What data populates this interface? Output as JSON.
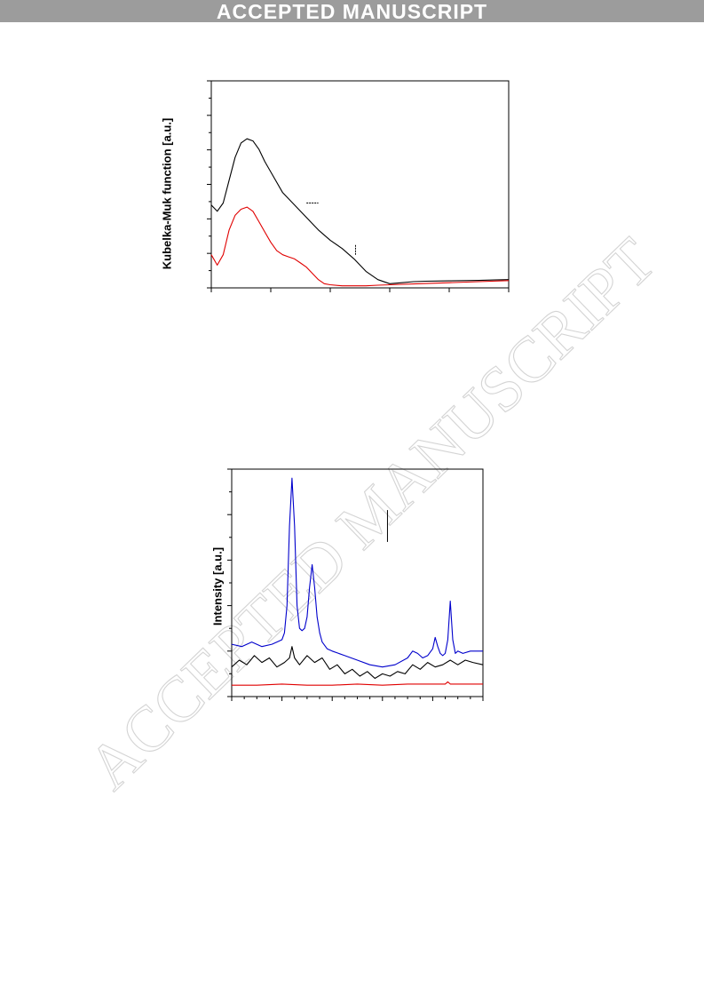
{
  "header": {
    "banner": "ACCEPTED MANUSCRIPT"
  },
  "watermark": {
    "text": "ACCEPTED MANUSCRIPT"
  },
  "chart_data": [
    {
      "type": "line",
      "ylabel": "Kubelka-Muk function [a.u.]",
      "xlim": [
        0,
        100
      ],
      "ylim": [
        0,
        100
      ],
      "grid": false,
      "series": [
        {
          "color": "#000000",
          "x": [
            0,
            2,
            4,
            6,
            8,
            10,
            12,
            14,
            16,
            18,
            20,
            24,
            28,
            32,
            36,
            40,
            44,
            48,
            52,
            56,
            60,
            64,
            68,
            72,
            76,
            80,
            85,
            90,
            95,
            100
          ],
          "y": [
            40,
            37,
            41,
            52,
            63,
            70,
            72,
            71,
            67,
            61,
            56,
            46,
            40,
            34,
            28,
            23,
            19,
            14,
            8,
            4,
            2,
            2.5,
            3,
            3.2,
            3.3,
            3.4,
            3.5,
            3.6,
            3.8,
            4
          ]
        },
        {
          "color": "#e00000",
          "x": [
            0,
            2,
            4,
            6,
            8,
            10,
            12,
            14,
            16,
            18,
            20,
            22,
            24,
            26,
            28,
            30,
            32,
            34,
            36,
            38,
            40,
            44,
            48,
            52,
            56,
            60,
            70,
            80,
            90,
            100
          ],
          "y": [
            16,
            11,
            16,
            28,
            35,
            38,
            39,
            37,
            32,
            27,
            22,
            18,
            16,
            15,
            14,
            12,
            10,
            7,
            4,
            2,
            1.5,
            1,
            1,
            1,
            1.3,
            1.5,
            2,
            2.5,
            3,
            3.5
          ]
        }
      ],
      "annotations": [
        {
          "kind": "dash-h",
          "x": [
            32,
            36
          ],
          "y": 41
        },
        {
          "kind": "dash-v",
          "x": 48.5,
          "y": [
            16,
            21
          ]
        }
      ]
    },
    {
      "type": "line",
      "ylabel": "Intensity [a.u.]",
      "xlim": [
        0,
        100
      ],
      "ylim": [
        0,
        100
      ],
      "grid": false,
      "series": [
        {
          "color": "#0000cc",
          "x": [
            0,
            4,
            8,
            12,
            16,
            18,
            20,
            21,
            22,
            23,
            24,
            25,
            26,
            27,
            28,
            29,
            30,
            31,
            32,
            33,
            34,
            35,
            36,
            38,
            40,
            45,
            50,
            55,
            60,
            65,
            70,
            72,
            74,
            76,
            78,
            80,
            81,
            82,
            83,
            84,
            85,
            86,
            87,
            88,
            89,
            90,
            92,
            95,
            98,
            100
          ],
          "y": [
            23,
            22,
            24,
            22,
            23,
            24,
            25,
            28,
            40,
            75,
            96,
            75,
            40,
            30,
            29,
            30,
            35,
            48,
            58,
            48,
            35,
            28,
            24,
            21,
            20,
            18,
            16,
            14,
            13,
            14,
            17,
            20,
            19,
            17,
            18,
            21,
            26,
            22,
            19,
            18,
            19,
            25,
            42,
            25,
            19,
            20,
            19,
            20,
            20,
            20
          ]
        },
        {
          "color": "#000000",
          "x": [
            0,
            3,
            6,
            9,
            12,
            15,
            18,
            21,
            23,
            24,
            25,
            27,
            30,
            33,
            36,
            39,
            42,
            45,
            48,
            51,
            54,
            57,
            60,
            63,
            66,
            69,
            72,
            75,
            78,
            81,
            84,
            87,
            90,
            93,
            96,
            100
          ],
          "y": [
            13,
            16,
            14,
            18,
            15,
            17,
            13,
            15,
            17,
            22,
            17,
            14,
            18,
            15,
            17,
            12,
            14,
            10,
            12,
            9,
            11,
            8,
            10,
            9,
            11,
            10,
            14,
            12,
            15,
            13,
            14,
            16,
            14,
            16,
            15,
            14
          ]
        },
        {
          "color": "#e00000",
          "x": [
            0,
            10,
            20,
            30,
            40,
            50,
            60,
            70,
            80,
            85,
            86,
            87,
            90,
            100
          ],
          "y": [
            5,
            5,
            5.5,
            5,
            5,
            5.5,
            5,
            5.5,
            5.5,
            5.5,
            6.5,
            5.5,
            5.5,
            5.5
          ]
        }
      ],
      "annotations": [
        {
          "kind": "line-v",
          "x": 62,
          "y": [
            68,
            82
          ]
        }
      ]
    }
  ]
}
